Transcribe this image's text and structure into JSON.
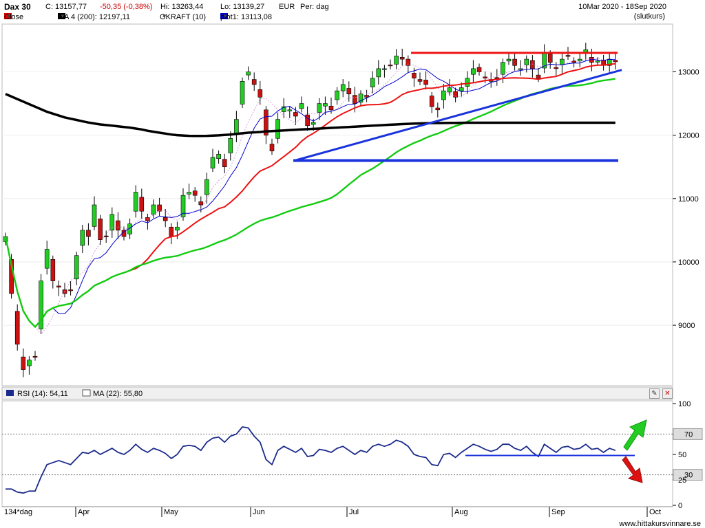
{
  "header": {
    "symbol": "Dax 30",
    "close": "C: 13157,77",
    "change": "-50,35 (-0,38%)",
    "high": "Hi: 13263,44",
    "low": "Lo: 13139,27",
    "currency": "EUR",
    "period": "Per: dag",
    "date_range": "10Mar 2020 - 18Sep 2020",
    "close_type": "(slutkurs)"
  },
  "legend": {
    "close_label": "Close",
    "ma_label": "MA 4 (200): 12197,11",
    "gkraft_label": "GKRAFT (10)",
    "plot_label": "plot1: 13113,08",
    "rsi_label": "RSI (14): 54,11",
    "rsi_ma_label": "MA (22): 55,80"
  },
  "colors": {
    "close": "#dd0000",
    "ma200": "#000000",
    "ma_red": "#ee1111",
    "ma_green": "#11cc11",
    "plot1": "#0000cc",
    "trend": "#1a33dd",
    "rsi": "#1a2a8a",
    "up": "#22cc22",
    "down": "#cc1111"
  },
  "footer": {
    "period_label": "134*dag",
    "watermark": "www.hittakursvinnare.se"
  },
  "chart_data": {
    "type": "candlestick",
    "x_months": [
      "Apr",
      "May",
      "Jun",
      "Jul",
      "Aug",
      "Sep",
      "Oct"
    ],
    "y_ticks": [
      9000,
      10000,
      11000,
      12000,
      13000
    ],
    "ylim": [
      8100,
      13700
    ],
    "closes": [
      10400,
      9500,
      8700,
      8300,
      8450,
      8500,
      9700,
      10200,
      9700,
      9600,
      9500,
      9550,
      10100,
      10500,
      10400,
      10900,
      10350,
      10400,
      10750,
      10500,
      10400,
      10600,
      11100,
      10800,
      10650,
      10900,
      10800,
      10650,
      10400,
      10550,
      11050,
      11100,
      11050,
      10900,
      11300,
      11650,
      11700,
      11500,
      11950,
      12250,
      12850,
      13000,
      12800,
      12600,
      12000,
      11750,
      12250,
      12450,
      12400,
      12300,
      12500,
      12150,
      12200,
      12500,
      12500,
      12400,
      12700,
      12800,
      12650,
      12500,
      12650,
      12600,
      12900,
      13050,
      13050,
      13100,
      13250,
      13200,
      13100,
      12900,
      12850,
      12800,
      12450,
      12400,
      12700,
      12750,
      12600,
      12750,
      12900,
      13050,
      13000,
      12900,
      12850,
      12900,
      13150,
      13200,
      13100,
      13050,
      13200,
      13050,
      12900,
      13300,
      13150,
      13050,
      13200,
      13250,
      13150,
      13200,
      13350,
      13150,
      13170,
      13100,
      13200,
      13158
    ],
    "ma200": [
      12650,
      12610,
      12570,
      12530,
      12490,
      12450,
      12410,
      12370,
      12340,
      12310,
      12280,
      12260,
      12240,
      12220,
      12200,
      12185,
      12170,
      12160,
      12150,
      12140,
      12130,
      12120,
      12105,
      12090,
      12070,
      12055,
      12040,
      12025,
      12010,
      12000,
      11995,
      11990,
      11988,
      11988,
      11990,
      11993,
      11997,
      12005,
      12010,
      12020,
      12030,
      12040,
      12045,
      12050,
      12060,
      12065,
      12070,
      12075,
      12080,
      12085,
      12090,
      12095,
      12100,
      12105,
      12110,
      12115,
      12120,
      12125,
      12130,
      12135,
      12140,
      12145,
      12150,
      12155,
      12160,
      12165,
      12170,
      12175,
      12180,
      12183,
      12186,
      12189,
      12191,
      12192,
      12193,
      12194,
      12195,
      12196,
      12197,
      12197,
      12197,
      12197,
      12197,
      12197,
      12197,
      12197,
      12197,
      12197,
      12197,
      12197,
      12197,
      12197,
      12197,
      12197,
      12197,
      12197,
      12197,
      12197,
      12197,
      12197,
      12197,
      12197,
      12197,
      12197
    ],
    "rsi_14": [
      16,
      16,
      13,
      12,
      14,
      14,
      28,
      40,
      42,
      44,
      42,
      40,
      46,
      52,
      51,
      54,
      50,
      53,
      56,
      52,
      50,
      54,
      60,
      55,
      52,
      56,
      54,
      51,
      46,
      50,
      58,
      59,
      58,
      54,
      62,
      66,
      67,
      62,
      68,
      70,
      77,
      76,
      68,
      62,
      45,
      40,
      54,
      58,
      55,
      52,
      56,
      48,
      49,
      55,
      54,
      52,
      56,
      58,
      54,
      50,
      54,
      52,
      58,
      60,
      58,
      60,
      64,
      62,
      58,
      50,
      48,
      47,
      40,
      39,
      50,
      51,
      47,
      52,
      56,
      60,
      58,
      55,
      53,
      55,
      60,
      60,
      56,
      54,
      58,
      52,
      48,
      60,
      56,
      52,
      57,
      58,
      55,
      56,
      60,
      55,
      56,
      52,
      56,
      54
    ],
    "rsi_ticks": [
      0,
      25,
      30,
      50,
      70,
      100
    ],
    "rsi_levels": [
      30,
      70
    ],
    "resistance_level": 13300,
    "support_level": 11600,
    "rsi_support_level": 49
  }
}
